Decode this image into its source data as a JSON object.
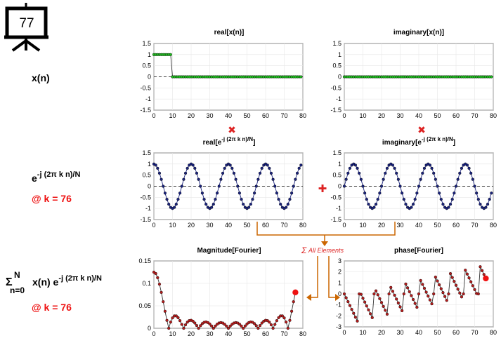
{
  "slide": {
    "number": "77"
  },
  "left_labels": {
    "xn": "x(n)",
    "kernel": {
      "base": "e",
      "exp": "-j (2π k n)/N"
    },
    "k1": "@ k = 76",
    "sum": {
      "sigma": "Σ",
      "top": "N",
      "bottom": "n=0",
      "body": " x(n) e",
      "exp": "-j (2π k n)/N"
    },
    "k2": "@ k = 76"
  },
  "titles": {
    "real_x": "real[x(n)]",
    "imag_x": "imaginary[x(n)]",
    "real_e": {
      "base": "real[e",
      "exp": "-j (2π k n)/N",
      "close": "]"
    },
    "imag_e": {
      "base": "imaginary[e",
      "exp": "-j (2π k n)/N",
      "close": "]"
    },
    "mag": "Magnitude[Fourier]",
    "phase": "phase[Fourier]"
  },
  "annotations": {
    "sum_label": "All Elements",
    "multiply": "✖",
    "plus": "✚"
  },
  "colors": {
    "green_marker": "#22bb22",
    "blue_marker": "#1a237e",
    "red_marker": "#b71c1c",
    "highlight": "#ee1111",
    "arrow": "#cc6600",
    "op_red": "#dd2222"
  },
  "chart_data": [
    {
      "id": "real_x",
      "type": "stem",
      "title": "real[x(n)]",
      "xlim": [
        0,
        80
      ],
      "ylim": [
        -1.5,
        1.5
      ],
      "xticks": [
        0,
        10,
        20,
        30,
        40,
        50,
        60,
        70,
        80
      ],
      "yticks": [
        -1.5,
        -1,
        -0.5,
        0,
        0.5,
        1,
        1.5
      ],
      "x_range": [
        0,
        79
      ],
      "ones_until": 9,
      "description": "x(n) = 1 for n = 0..9, 0 for n = 10..79"
    },
    {
      "id": "imag_x",
      "type": "stem",
      "title": "imaginary[x(n)]",
      "xlim": [
        0,
        80
      ],
      "ylim": [
        -1.5,
        1.5
      ],
      "xticks": [
        0,
        10,
        20,
        30,
        40,
        50,
        60,
        70,
        80
      ],
      "yticks": [
        -1.5,
        -1,
        -0.5,
        0,
        0.5,
        1,
        1.5
      ],
      "x_range": [
        0,
        79
      ],
      "description": "all zeros"
    },
    {
      "id": "real_e",
      "type": "line",
      "title": "real[e^-j (2π k n)/N]",
      "xlim": [
        0,
        80
      ],
      "ylim": [
        -1.5,
        1.5
      ],
      "xticks": [
        0,
        10,
        20,
        30,
        40,
        50,
        60,
        70,
        80
      ],
      "yticks": [
        -1.5,
        -1,
        -0.5,
        0,
        0.5,
        1,
        1.5
      ],
      "k": 76,
      "N": 80,
      "description": "cos(2π·76·n/80), n = 0..79"
    },
    {
      "id": "imag_e",
      "type": "line",
      "title": "imaginary[e^-j (2π k n)/N]",
      "xlim": [
        0,
        80
      ],
      "ylim": [
        -1.5,
        1.5
      ],
      "xticks": [
        0,
        10,
        20,
        30,
        40,
        50,
        60,
        70,
        80
      ],
      "yticks": [
        -1.5,
        -1,
        -0.5,
        0,
        0.5,
        1,
        1.5
      ],
      "k": 76,
      "N": 80,
      "description": "-sin(2π·76·n/80), n = 0..79"
    },
    {
      "id": "mag",
      "type": "line",
      "title": "Magnitude[Fourier]",
      "xlim": [
        0,
        80
      ],
      "ylim": [
        0,
        0.15
      ],
      "xticks": [
        0,
        10,
        20,
        30,
        40,
        50,
        60,
        70,
        80
      ],
      "yticks": [
        0,
        0.05,
        0.1,
        0.15
      ],
      "k_range": [
        0,
        76
      ],
      "highlight_k": 76,
      "highlight_value": 0.08,
      "description": "|X(k)|/N for 10-sample pulse, N = 80"
    },
    {
      "id": "phase",
      "type": "line",
      "title": "phase[Fourier]",
      "xlim": [
        0,
        80
      ],
      "ylim": [
        -3,
        3
      ],
      "xticks": [
        0,
        10,
        20,
        30,
        40,
        50,
        60,
        70,
        80
      ],
      "yticks": [
        -3,
        -2,
        -1,
        0,
        1,
        2,
        3
      ],
      "k_range": [
        0,
        76
      ],
      "highlight_k": 76,
      "highlight_value": 1.41,
      "description": "angle of X(k), wrapped to (-π, π]"
    }
  ]
}
